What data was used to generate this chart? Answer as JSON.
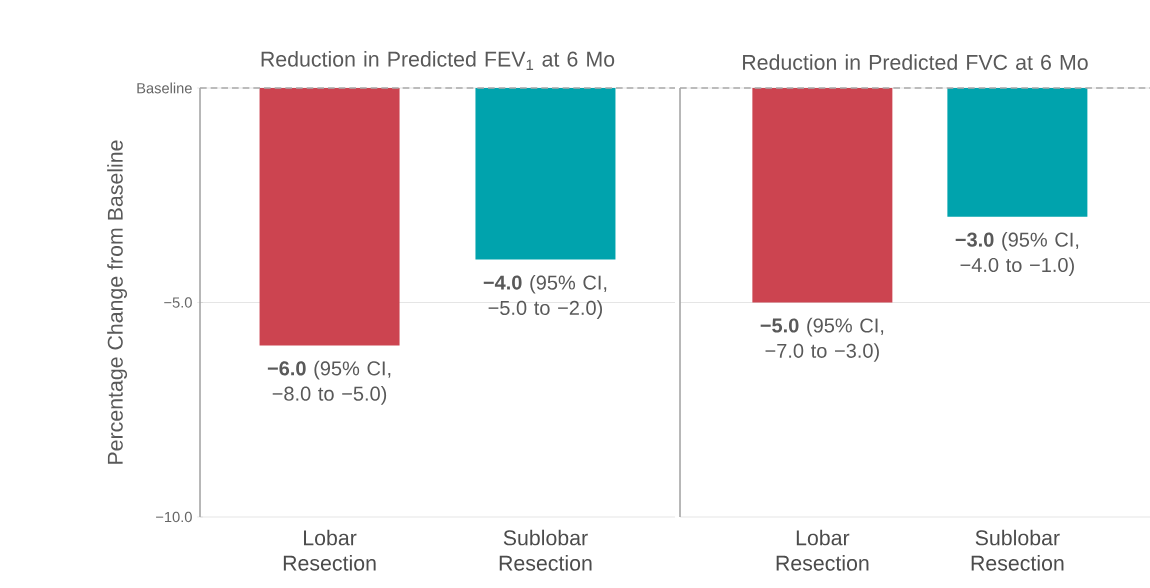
{
  "chart_data": [
    {
      "type": "bar",
      "title": "Reduction in Predicted FEV$_{1}$ at 6 Mo",
      "ylabel": "Percentage Change from Baseline",
      "categories": [
        "Lobar Resection",
        "Sublobar Resection"
      ],
      "values": [
        -6.0,
        -4.0
      ],
      "colors": [
        "#cc4450",
        "#00a3ad"
      ],
      "value_labels": [
        "**−6.0** (95% CI, −8.0 to −5.0)",
        "**−4.0** (95% CI, −5.0 to −2.0)"
      ],
      "ylim": [
        -10,
        0
      ],
      "yticks": [
        {
          "value": 0,
          "label": "Baseline"
        },
        {
          "value": -5,
          "label": "−5.0"
        },
        {
          "value": -10,
          "label": "−10.0"
        }
      ],
      "grid": "y",
      "ref_lines": [
        {
          "axis": "y",
          "value": 0,
          "color": "#aaaaaa",
          "line_style": "dashed"
        }
      ]
    },
    {
      "type": "bar",
      "title": "Reduction in Predicted FVC at 6 Mo",
      "categories": [
        "Lobar Resection",
        "Sublobar Resection"
      ],
      "values": [
        -5.0,
        -3.0
      ],
      "colors": [
        "#cc4450",
        "#00a3ad"
      ],
      "value_labels": [
        "**−5.0** (95% CI, −7.0 to −3.0)",
        "**−3.0** (95% CI, −4.0 to −1.0)"
      ],
      "ylim": [
        -10,
        0
      ],
      "yticks": [
        0,
        -5,
        -10
      ],
      "grid": "y",
      "tick_labels": "x",
      "ref_lines": [
        {
          "axis": "y",
          "value": 0,
          "color": "#aaaaaa",
          "line_style": "dashed"
        }
      ]
    }
  ]
}
